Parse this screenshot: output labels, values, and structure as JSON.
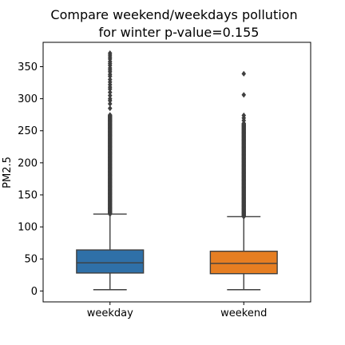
{
  "chart_data": {
    "type": "box",
    "title_line1": "Compare weekend/weekdays pollution",
    "title_line2": "for winter p-value=0.155",
    "xlabel": "",
    "ylabel": "PM2.5",
    "ylim": [
      -17,
      388
    ],
    "yticks": [
      0,
      50,
      100,
      150,
      200,
      250,
      300,
      350
    ],
    "grid": false,
    "categories": [
      "weekday",
      "weekend"
    ],
    "boxes": [
      {
        "category": "weekday",
        "color": "#2f70a8",
        "whisker_low": 2,
        "q1": 28,
        "median": 44,
        "q3": 64,
        "whisker_high": 120,
        "outliers_dense_range": [
          120,
          275
        ],
        "outliers": [
          285,
          292,
          297,
          300,
          305,
          310,
          315,
          318,
          322,
          326,
          330,
          335,
          338,
          342,
          345,
          348,
          352,
          355,
          358,
          362,
          365,
          368,
          371
        ]
      },
      {
        "category": "weekend",
        "color": "#e67e22",
        "whisker_low": 2,
        "q1": 27,
        "median": 43,
        "q3": 62,
        "whisker_high": 116,
        "outliers_dense_range": [
          116,
          262
        ],
        "outliers": [
          266,
          270,
          274,
          306,
          339
        ]
      }
    ]
  }
}
